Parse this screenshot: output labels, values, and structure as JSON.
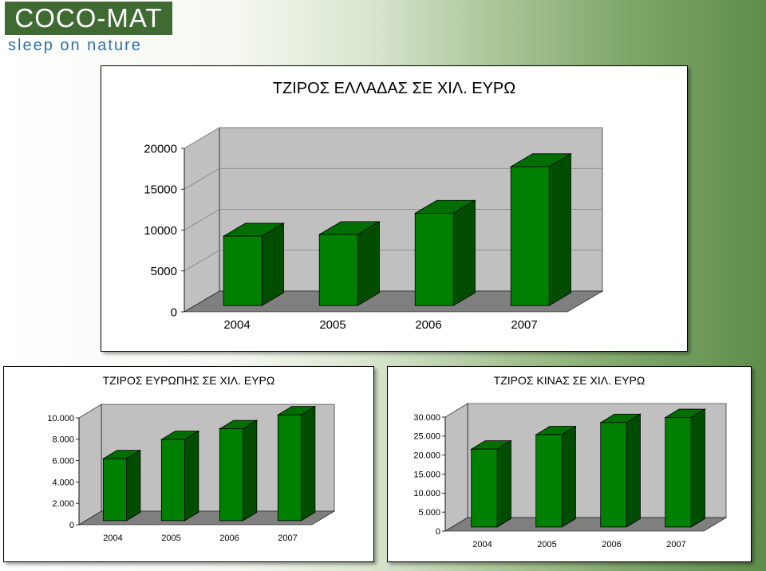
{
  "logo": {
    "name": "COCO-MAT",
    "tagline": "sleep on nature"
  },
  "colors": {
    "bar_front": "#008000",
    "bar_side": "#004d00",
    "bar_top": "#006e00",
    "floor": "#7f7f7f",
    "wall": "#c0c0c0",
    "gridline": "#7f7f7f"
  },
  "chart_data": [
    {
      "type": "bar",
      "title": "ΤΖΙΡΟΣ ΕΛΛΑΔΑΣ ΣΕ ΧΙΛ. ΕΥΡΩ",
      "categories": [
        "2004",
        "2005",
        "2006",
        "2007"
      ],
      "values": [
        8500,
        8700,
        11300,
        17000
      ],
      "ylim": [
        0,
        20000
      ],
      "yticks": [
        0,
        5000,
        10000,
        15000,
        20000
      ],
      "ytick_labels": [
        "0",
        "5000",
        "10000",
        "15000",
        "20000"
      ],
      "xlabel": "",
      "ylabel": "",
      "legend": "none",
      "grid": true
    },
    {
      "type": "bar",
      "title": "ΤΖΙΡΟΣ ΕΥΡΩΠΗΣ ΣΕ ΧΙΛ. ΕΥΡΩ",
      "categories": [
        "2004",
        "2005",
        "2006",
        "2007"
      ],
      "values": [
        5800,
        7600,
        8600,
        9900
      ],
      "ylim": [
        0,
        10000
      ],
      "yticks": [
        0,
        2000,
        4000,
        6000,
        8000,
        10000
      ],
      "ytick_labels": [
        "0",
        "2.000",
        "4.000",
        "6.000",
        "8.000",
        "10.000"
      ],
      "xlabel": "",
      "ylabel": "",
      "legend": "none",
      "grid": false
    },
    {
      "type": "bar",
      "title": "ΤΖΙΡΟΣ ΚΙΝΑΣ ΣΕ ΧΙΛ. ΕΥΡΩ",
      "categories": [
        "2004",
        "2005",
        "2006",
        "2007"
      ],
      "values": [
        20500,
        24300,
        27500,
        28800
      ],
      "ylim": [
        0,
        30000
      ],
      "yticks": [
        0,
        5000,
        10000,
        15000,
        20000,
        25000,
        30000
      ],
      "ytick_labels": [
        "0",
        "5.000",
        "10.000",
        "15.000",
        "20.000",
        "25.000",
        "30.000"
      ],
      "xlabel": "",
      "ylabel": "",
      "legend": "none",
      "grid": false
    }
  ]
}
